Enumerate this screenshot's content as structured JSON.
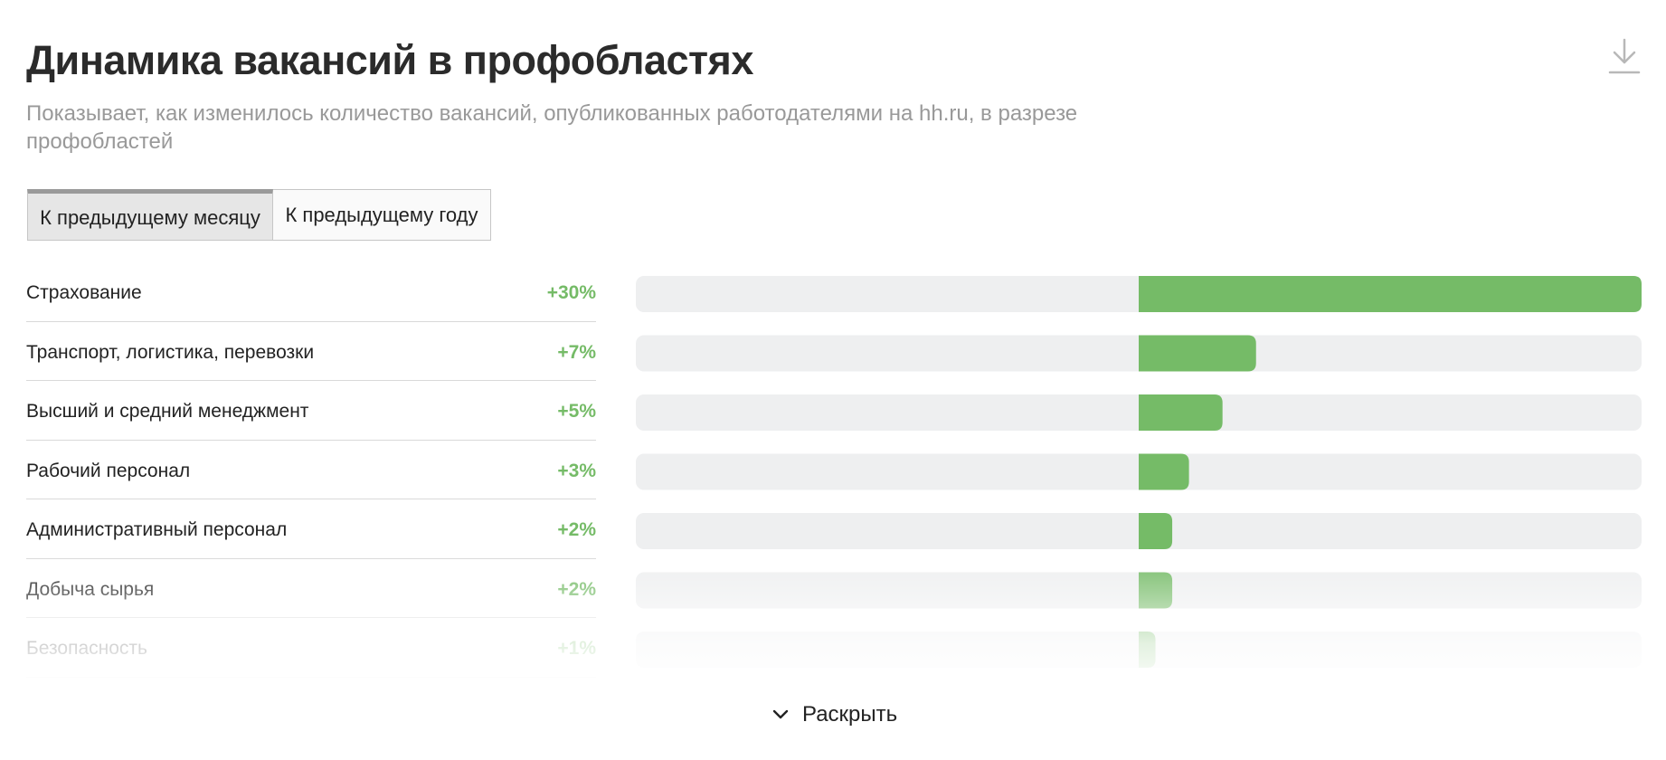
{
  "header": {
    "title": "Динамика вакансий в профобластях",
    "subtitle": "Показывает, как изменилось количество вакансий, опубликованных работодателями на hh.ru, в разрезе профобластей"
  },
  "tabs": [
    {
      "label": "К предыдущему месяцу",
      "active": true
    },
    {
      "label": "К предыдущему году",
      "active": false
    }
  ],
  "expand_label": "Раскрыть",
  "icons": {
    "download": "download-icon",
    "expand": "chevron-down-icon"
  },
  "colors": {
    "positive": "#75bb67",
    "track": "#eeeff0"
  },
  "chart_data": {
    "type": "bar",
    "orientation": "horizontal",
    "categories": [
      "Страхование",
      "Транспорт, логистика, перевозки",
      "Высший и средний менеджмент",
      "Рабочий персонал",
      "Административный персонал",
      "Добыча сырья",
      "Безопасность"
    ],
    "values": [
      30,
      7,
      5,
      3,
      2,
      2,
      1
    ],
    "value_labels": [
      "+30%",
      "+7%",
      "+5%",
      "+3%",
      "+2%",
      "+2%",
      "+1%"
    ],
    "unit": "%",
    "xlim": [
      -30,
      30
    ],
    "grid": false
  }
}
